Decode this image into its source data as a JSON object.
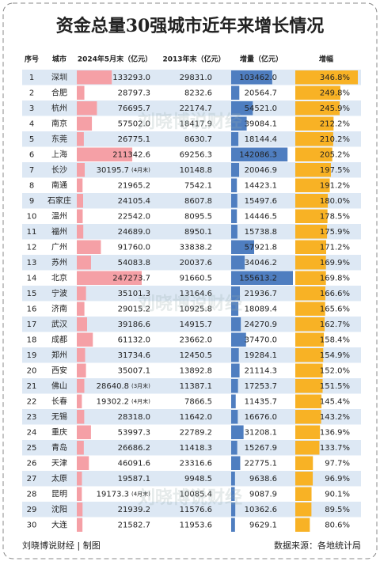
{
  "title": "资金总量30强城市近年来增长情况",
  "columns": [
    "序号",
    "城市",
    "2024年5月末（亿元）",
    "2013年末（亿元）",
    "增量（亿元）",
    "增幅"
  ],
  "rows": [
    {
      "rank": 1,
      "city": "深圳",
      "y2024": {
        "value": 133293,
        "label": "133293.0"
      },
      "y2013": "29831.0",
      "increase": {
        "value": 103462,
        "label": "103462.0"
      },
      "growth": {
        "value": 346.8,
        "label": "346.8%"
      }
    },
    {
      "rank": 2,
      "city": "合肥",
      "y2024": {
        "value": 28797.3,
        "label": "28797.3"
      },
      "y2013": "8232.6",
      "increase": {
        "value": 20564.7,
        "label": "20564.7"
      },
      "growth": {
        "value": 249.8,
        "label": "249.8%"
      }
    },
    {
      "rank": 3,
      "city": "杭州",
      "y2024": {
        "value": 76695.7,
        "label": "76695.7"
      },
      "y2013": "22174.7",
      "increase": {
        "value": 54521,
        "label": "54521.0"
      },
      "growth": {
        "value": 245.9,
        "label": "245.9%"
      }
    },
    {
      "rank": 4,
      "city": "南京",
      "y2024": {
        "value": 57502,
        "label": "57502.0"
      },
      "y2013": "18417.9",
      "increase": {
        "value": 39084.1,
        "label": "39084.1"
      },
      "growth": {
        "value": 212.2,
        "label": "212.2%"
      }
    },
    {
      "rank": 5,
      "city": "东莞",
      "y2024": {
        "value": 26775.1,
        "label": "26775.1"
      },
      "y2013": "8630.7",
      "increase": {
        "value": 18144.4,
        "label": "18144.4"
      },
      "growth": {
        "value": 210.2,
        "label": "210.2%"
      }
    },
    {
      "rank": 6,
      "city": "上海",
      "y2024": {
        "value": 211342.6,
        "label": "211342.6"
      },
      "y2013": "69256.3",
      "increase": {
        "value": 142086.3,
        "label": "142086.3"
      },
      "growth": {
        "value": 205.2,
        "label": "205.2%"
      }
    },
    {
      "rank": 7,
      "city": "长沙",
      "y2024": {
        "value": 30195.7,
        "label": "30195.7"
      },
      "note": "(4月末)",
      "y2013": "10148.8",
      "increase": {
        "value": 20046.9,
        "label": "20046.9"
      },
      "growth": {
        "value": 197.5,
        "label": "197.5%"
      }
    },
    {
      "rank": 8,
      "city": "南通",
      "y2024": {
        "value": 21965.2,
        "label": "21965.2"
      },
      "y2013": "7542.1",
      "increase": {
        "value": 14423.1,
        "label": "14423.1"
      },
      "growth": {
        "value": 191.2,
        "label": "191.2%"
      }
    },
    {
      "rank": 9,
      "city": "石家庄",
      "y2024": {
        "value": 24105.4,
        "label": "24105.4"
      },
      "y2013": "8607.8",
      "increase": {
        "value": 15497.6,
        "label": "15497.6"
      },
      "growth": {
        "value": 180,
        "label": "180.0%"
      }
    },
    {
      "rank": 10,
      "city": "温州",
      "y2024": {
        "value": 22542,
        "label": "22542.0"
      },
      "y2013": "8095.5",
      "increase": {
        "value": 14446.5,
        "label": "14446.5"
      },
      "growth": {
        "value": 178.5,
        "label": "178.5%"
      }
    },
    {
      "rank": 11,
      "city": "福州",
      "y2024": {
        "value": 24689,
        "label": "24689.0"
      },
      "y2013": "8950.1",
      "increase": {
        "value": 15738.8,
        "label": "15738.8"
      },
      "growth": {
        "value": 175.9,
        "label": "175.9%"
      }
    },
    {
      "rank": 12,
      "city": "广州",
      "y2024": {
        "value": 91760,
        "label": "91760.0"
      },
      "y2013": "33838.2",
      "increase": {
        "value": 57921.8,
        "label": "57921.8"
      },
      "growth": {
        "value": 171.2,
        "label": "171.2%"
      }
    },
    {
      "rank": 13,
      "city": "苏州",
      "y2024": {
        "value": 54083.8,
        "label": "54083.8"
      },
      "y2013": "20037.6",
      "increase": {
        "value": 34046.2,
        "label": "34046.2"
      },
      "growth": {
        "value": 169.9,
        "label": "169.9%"
      }
    },
    {
      "rank": 14,
      "city": "北京",
      "y2024": {
        "value": 247273.7,
        "label": "247273.7"
      },
      "y2013": "91660.5",
      "increase": {
        "value": 155613.2,
        "label": "155613.2"
      },
      "growth": {
        "value": 169.8,
        "label": "169.8%"
      }
    },
    {
      "rank": 15,
      "city": "宁波",
      "y2024": {
        "value": 35101.3,
        "label": "35101.3"
      },
      "y2013": "13164.6",
      "increase": {
        "value": 21936.7,
        "label": "21936.7"
      },
      "growth": {
        "value": 166.6,
        "label": "166.6%"
      }
    },
    {
      "rank": 16,
      "city": "济南",
      "y2024": {
        "value": 29015.2,
        "label": "29015.2"
      },
      "y2013": "10925.8",
      "increase": {
        "value": 18089.4,
        "label": "18089.4"
      },
      "growth": {
        "value": 165.6,
        "label": "165.6%"
      }
    },
    {
      "rank": 17,
      "city": "武汉",
      "y2024": {
        "value": 39186.6,
        "label": "39186.6"
      },
      "y2013": "14915.7",
      "increase": {
        "value": 24270.9,
        "label": "24270.9"
      },
      "growth": {
        "value": 162.7,
        "label": "162.7%"
      }
    },
    {
      "rank": 18,
      "city": "成都",
      "y2024": {
        "value": 61132,
        "label": "61132.0"
      },
      "y2013": "23662.0",
      "increase": {
        "value": 37470,
        "label": "37470.0"
      },
      "growth": {
        "value": 158.4,
        "label": "158.4%"
      }
    },
    {
      "rank": 19,
      "city": "郑州",
      "y2024": {
        "value": 31734.6,
        "label": "31734.6"
      },
      "y2013": "12450.5",
      "increase": {
        "value": 19284.1,
        "label": "19284.1"
      },
      "growth": {
        "value": 154.9,
        "label": "154.9%"
      }
    },
    {
      "rank": 20,
      "city": "西安",
      "y2024": {
        "value": 35007.1,
        "label": "35007.1"
      },
      "y2013": "13892.8",
      "increase": {
        "value": 21114.3,
        "label": "21114.3"
      },
      "growth": {
        "value": 152,
        "label": "152.0%"
      }
    },
    {
      "rank": 21,
      "city": "佛山",
      "y2024": {
        "value": 28640.8,
        "label": "28640.8"
      },
      "note": "(3月末)",
      "y2013": "11387.1",
      "increase": {
        "value": 17253.7,
        "label": "17253.7"
      },
      "growth": {
        "value": 151.5,
        "label": "151.5%"
      }
    },
    {
      "rank": 22,
      "city": "长春",
      "y2024": {
        "value": 19302.2,
        "label": "19302.2"
      },
      "note": "(4月末)",
      "y2013": "7866.5",
      "increase": {
        "value": 11435.7,
        "label": "11435.7"
      },
      "growth": {
        "value": 145.4,
        "label": "145.4%"
      }
    },
    {
      "rank": 23,
      "city": "无锡",
      "y2024": {
        "value": 28318,
        "label": "28318.0"
      },
      "y2013": "11642.0",
      "increase": {
        "value": 16676,
        "label": "16676.0"
      },
      "growth": {
        "value": 143.2,
        "label": "143.2%"
      }
    },
    {
      "rank": 24,
      "city": "重庆",
      "y2024": {
        "value": 53997.3,
        "label": "53997.3"
      },
      "y2013": "22789.2",
      "increase": {
        "value": 31208.1,
        "label": "31208.1"
      },
      "growth": {
        "value": 136.9,
        "label": "136.9%"
      }
    },
    {
      "rank": 25,
      "city": "青岛",
      "y2024": {
        "value": 26686.2,
        "label": "26686.2"
      },
      "y2013": "11418.3",
      "increase": {
        "value": 15267.9,
        "label": "15267.9"
      },
      "growth": {
        "value": 133.7,
        "label": "133.7%"
      }
    },
    {
      "rank": 26,
      "city": "天津",
      "y2024": {
        "value": 46091.6,
        "label": "46091.6"
      },
      "y2013": "23316.6",
      "increase": {
        "value": 22775.1,
        "label": "22775.1"
      },
      "growth": {
        "value": 97.7,
        "label": "97.7%"
      }
    },
    {
      "rank": 27,
      "city": "太原",
      "y2024": {
        "value": 19587.1,
        "label": "19587.1"
      },
      "y2013": "9948.5",
      "increase": {
        "value": 9638.6,
        "label": "9638.6"
      },
      "growth": {
        "value": 96.9,
        "label": "96.9%"
      }
    },
    {
      "rank": 28,
      "city": "昆明",
      "y2024": {
        "value": 19173.3,
        "label": "19173.3"
      },
      "note": "(4月末)",
      "y2013": "10085.4",
      "increase": {
        "value": 9087.9,
        "label": "9087.9"
      },
      "growth": {
        "value": 90.1,
        "label": "90.1%"
      }
    },
    {
      "rank": 29,
      "city": "沈阳",
      "y2024": {
        "value": 21939.2,
        "label": "21939.2"
      },
      "y2013": "11576.6",
      "increase": {
        "value": 10362.6,
        "label": "10362.6"
      },
      "growth": {
        "value": 89.5,
        "label": "89.5%"
      }
    },
    {
      "rank": 30,
      "city": "大连",
      "y2024": {
        "value": 21582.7,
        "label": "21582.7"
      },
      "y2013": "11953.6",
      "increase": {
        "value": 9629.1,
        "label": "9629.1"
      },
      "growth": {
        "value": 80.6,
        "label": "80.6%"
      }
    }
  ],
  "watermark": "刘晓博说财经",
  "footer": {
    "left": "刘晓博说财经 | 制图",
    "right": "数据来源：各地统计局"
  }
}
